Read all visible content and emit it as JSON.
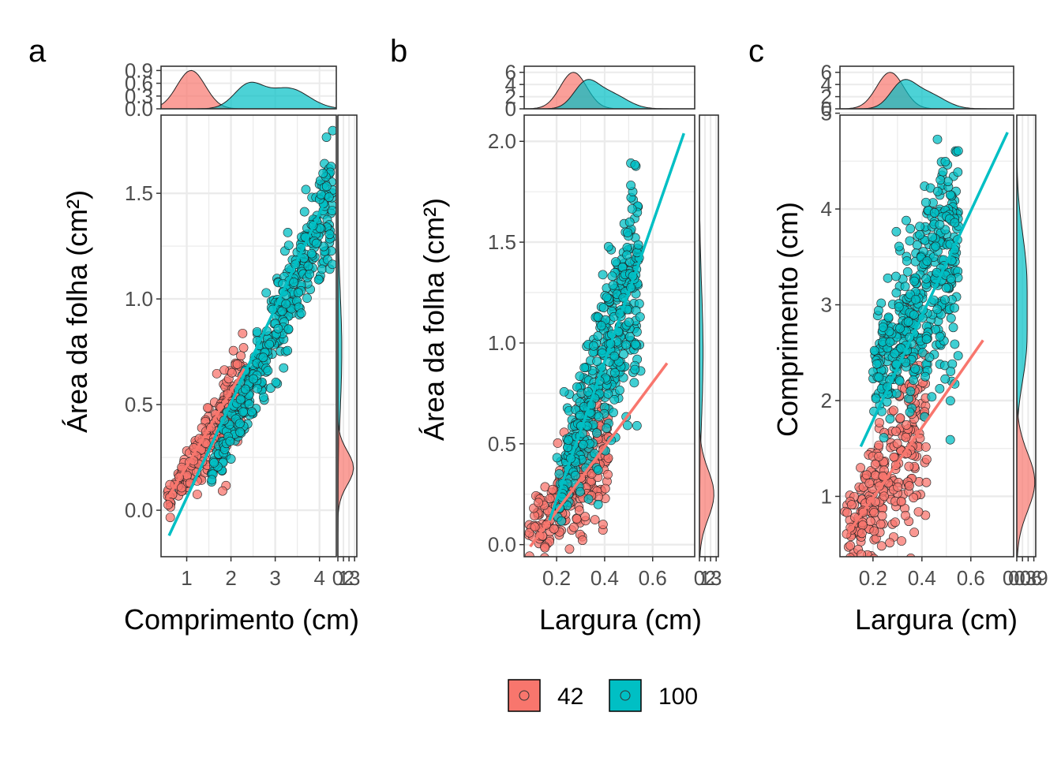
{
  "colors": {
    "g42": "#F8766D",
    "g100": "#00BFC4",
    "grid": "#EBEBEB",
    "border": "#333333",
    "tick": "#4D4D4D"
  },
  "legend": {
    "items": [
      {
        "label": "42",
        "color": "#F8766D"
      },
      {
        "label": "100",
        "color": "#00BFC4"
      }
    ]
  },
  "chart_data": [
    {
      "panel": "a",
      "type": "scatter",
      "xlabel": "Comprimento (cm)",
      "ylabel": "Área da folha (cm²)",
      "xlim": [
        0.42,
        4.38
      ],
      "ylim": [
        -0.22,
        1.87
      ],
      "xticks": [
        1,
        2,
        3,
        4
      ],
      "yticks": [
        0.0,
        0.5,
        1.0,
        1.5
      ],
      "ytick_labels": [
        "0.0",
        "0.5",
        "1.0",
        "1.5"
      ],
      "series": [
        {
          "name": "42",
          "x_range": [
            0.55,
            2.3
          ],
          "slope": 0.32,
          "intercept": -0.13,
          "spread": 0.07,
          "fit": [
            [
              0.55,
              0.05
            ],
            [
              2.3,
              0.67
            ]
          ]
        },
        {
          "name": "100",
          "x_range": [
            1.5,
            4.3
          ],
          "slope": 0.48,
          "intercept": -0.58,
          "spread": 0.1,
          "fit": [
            [
              0.6,
              -0.12
            ],
            [
              4.1,
              1.45
            ]
          ]
        }
      ],
      "top_density": {
        "ticks": [
          "0.0",
          "0.3",
          "0.6",
          "0.9"
        ],
        "tick_values": [
          0,
          0.3,
          0.6,
          0.9
        ],
        "ymax": 1.0,
        "g42": {
          "peak_x": 1.1,
          "sd": 0.32,
          "peak": 0.9
        },
        "g100": {
          "modes": [
            [
              2.4,
              0.33,
              0.55
            ],
            [
              3.3,
              0.45,
              0.48
            ]
          ]
        }
      },
      "right_density": {
        "ticks": [
          "0",
          "1",
          "2",
          "3"
        ],
        "tick_values": [
          0,
          1,
          2,
          3
        ],
        "xmax": 3.4,
        "g42": {
          "peak_y": 0.2,
          "sd": 0.08,
          "peak": 2.8
        },
        "g100": {
          "modes": [
            [
              0.75,
              0.28,
              0.7
            ]
          ]
        }
      }
    },
    {
      "panel": "b",
      "type": "scatter",
      "xlabel": "Largura (cm)",
      "ylabel": "Área da folha (cm²)",
      "xlim": [
        0.065,
        0.775
      ],
      "ylim": [
        -0.06,
        2.13
      ],
      "xticks": [
        0.2,
        0.4,
        0.6
      ],
      "yticks": [
        0.0,
        0.5,
        1.0,
        1.5,
        2.0
      ],
      "ytick_labels": [
        "0.0",
        "0.5",
        "1.0",
        "1.5",
        "2.0"
      ],
      "series": [
        {
          "name": "42",
          "x_range": [
            0.08,
            0.42
          ],
          "slope": 1.4,
          "intercept": -0.08,
          "spread": 0.11,
          "fit": [
            [
              0.09,
              -0.01
            ],
            [
              0.66,
              0.9
            ]
          ]
        },
        {
          "name": "100",
          "x_range": [
            0.2,
            0.55
          ],
          "slope": 3.3,
          "intercept": -0.41,
          "spread": 0.2,
          "fit": [
            [
              0.17,
              0.12
            ],
            [
              0.73,
              2.04
            ]
          ]
        }
      ],
      "top_density": {
        "ticks": [
          "0",
          "2",
          "4",
          "6"
        ],
        "tick_values": [
          0,
          2,
          4,
          6
        ],
        "ymax": 7.0,
        "g42": {
          "peak_x": 0.27,
          "sd": 0.055,
          "peak": 6.0
        },
        "g100": {
          "modes": [
            [
              0.32,
              0.05,
              3.8
            ],
            [
              0.42,
              0.07,
              2.5
            ]
          ]
        }
      },
      "right_density": {
        "ticks": [
          "0",
          "1",
          "2",
          "3"
        ],
        "tick_values": [
          0,
          1,
          2,
          3
        ],
        "xmax": 3.4,
        "g42": {
          "peak_y": 0.25,
          "sd": 0.12,
          "peak": 2.6
        },
        "g100": {
          "modes": [
            [
              0.95,
              0.32,
              0.65
            ]
          ]
        }
      }
    },
    {
      "panel": "c",
      "type": "scatter",
      "xlabel": "Largura (cm)",
      "ylabel": "Comprimento (cm)",
      "xlim": [
        0.065,
        0.775
      ],
      "ylim": [
        0.37,
        4.98
      ],
      "xticks": [
        0.2,
        0.4,
        0.6
      ],
      "yticks": [
        1,
        2,
        3,
        4,
        5
      ],
      "ytick_labels": [
        "1",
        "2",
        "3",
        "4",
        "5"
      ],
      "series": [
        {
          "name": "42",
          "x_range": [
            0.08,
            0.42
          ],
          "slope": 3.6,
          "intercept": 0.3,
          "spread": 0.35,
          "fit": [
            [
              0.1,
              0.62
            ],
            [
              0.65,
              2.63
            ]
          ]
        },
        {
          "name": "100",
          "x_range": [
            0.2,
            0.55
          ],
          "slope": 4.4,
          "intercept": 1.35,
          "spread": 0.45,
          "fit": [
            [
              0.15,
              1.52
            ],
            [
              0.75,
              4.8
            ]
          ]
        }
      ],
      "top_density": {
        "ticks": [
          "0",
          "2",
          "4",
          "6"
        ],
        "tick_values": [
          0,
          2,
          4,
          6
        ],
        "ymax": 7.0,
        "g42": {
          "peak_x": 0.27,
          "sd": 0.055,
          "peak": 6.0
        },
        "g100": {
          "modes": [
            [
              0.32,
              0.05,
              3.8
            ],
            [
              0.42,
              0.07,
              2.5
            ]
          ]
        }
      },
      "right_density": {
        "ticks": [
          "0.0",
          "0.3",
          "0.6",
          "0.9"
        ],
        "tick_values": [
          0,
          0.3,
          0.6,
          0.9
        ],
        "xmax": 1.0,
        "g42": {
          "peak_y": 1.15,
          "sd": 0.3,
          "peak": 0.95
        },
        "g100": {
          "modes": [
            [
              2.5,
              0.35,
              0.4
            ],
            [
              3.3,
              0.45,
              0.5
            ]
          ]
        }
      }
    }
  ]
}
